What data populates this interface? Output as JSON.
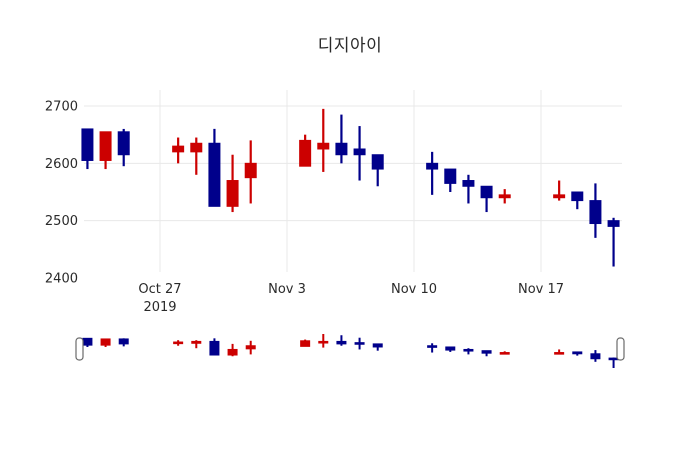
{
  "title": "디지아이",
  "chart_data": {
    "type": "candlestick",
    "title": "디지아이",
    "xlabel": "",
    "ylabel": "",
    "increasing_color": "#cc0000",
    "decreasing_color": "#00008b",
    "grid": true,
    "rangeslider": true,
    "ylim": [
      2410,
      2728
    ],
    "y_ticks": [
      "2700",
      "2600",
      "2500",
      "2400"
    ],
    "x_ticks": [
      {
        "label": "Oct 27",
        "sublabel": "2019",
        "date": "2019-10-27"
      },
      {
        "label": "Nov 3",
        "sublabel": "",
        "date": "2019-11-03"
      },
      {
        "label": "Nov 10",
        "sublabel": "",
        "date": "2019-11-10"
      },
      {
        "label": "Nov 17",
        "sublabel": "",
        "date": "2019-11-17"
      }
    ],
    "ohlc": [
      {
        "date": "2019-10-23",
        "open": 2660,
        "high": 2660,
        "low": 2590,
        "close": 2605
      },
      {
        "date": "2019-10-24",
        "open": 2605,
        "high": 2655,
        "low": 2590,
        "close": 2655
      },
      {
        "date": "2019-10-25",
        "open": 2655,
        "high": 2660,
        "low": 2595,
        "close": 2615
      },
      {
        "date": "2019-10-28",
        "open": 2620,
        "high": 2645,
        "low": 2600,
        "close": 2630
      },
      {
        "date": "2019-10-29",
        "open": 2620,
        "high": 2645,
        "low": 2580,
        "close": 2635
      },
      {
        "date": "2019-10-30",
        "open": 2635,
        "high": 2660,
        "low": 2525,
        "close": 2525
      },
      {
        "date": "2019-10-31",
        "open": 2525,
        "high": 2615,
        "low": 2515,
        "close": 2570
      },
      {
        "date": "2019-11-01",
        "open": 2575,
        "high": 2640,
        "low": 2530,
        "close": 2600
      },
      {
        "date": "2019-11-04",
        "open": 2595,
        "high": 2650,
        "low": 2595,
        "close": 2640
      },
      {
        "date": "2019-11-05",
        "open": 2625,
        "high": 2695,
        "low": 2585,
        "close": 2635
      },
      {
        "date": "2019-11-06",
        "open": 2635,
        "high": 2685,
        "low": 2600,
        "close": 2615
      },
      {
        "date": "2019-11-07",
        "open": 2625,
        "high": 2665,
        "low": 2570,
        "close": 2615
      },
      {
        "date": "2019-11-08",
        "open": 2615,
        "high": 2615,
        "low": 2560,
        "close": 2590
      },
      {
        "date": "2019-11-11",
        "open": 2600,
        "high": 2620,
        "low": 2545,
        "close": 2590
      },
      {
        "date": "2019-11-12",
        "open": 2590,
        "high": 2590,
        "low": 2550,
        "close": 2565
      },
      {
        "date": "2019-11-13",
        "open": 2570,
        "high": 2580,
        "low": 2530,
        "close": 2560
      },
      {
        "date": "2019-11-14",
        "open": 2560,
        "high": 2560,
        "low": 2515,
        "close": 2540
      },
      {
        "date": "2019-11-15",
        "open": 2540,
        "high": 2555,
        "low": 2530,
        "close": 2545
      },
      {
        "date": "2019-11-18",
        "open": 2540,
        "high": 2570,
        "low": 2535,
        "close": 2545
      },
      {
        "date": "2019-11-19",
        "open": 2550,
        "high": 2550,
        "low": 2520,
        "close": 2535
      },
      {
        "date": "2019-11-20",
        "open": 2535,
        "high": 2565,
        "low": 2470,
        "close": 2495
      },
      {
        "date": "2019-11-21",
        "open": 2500,
        "high": 2505,
        "low": 2420,
        "close": 2490
      }
    ]
  }
}
